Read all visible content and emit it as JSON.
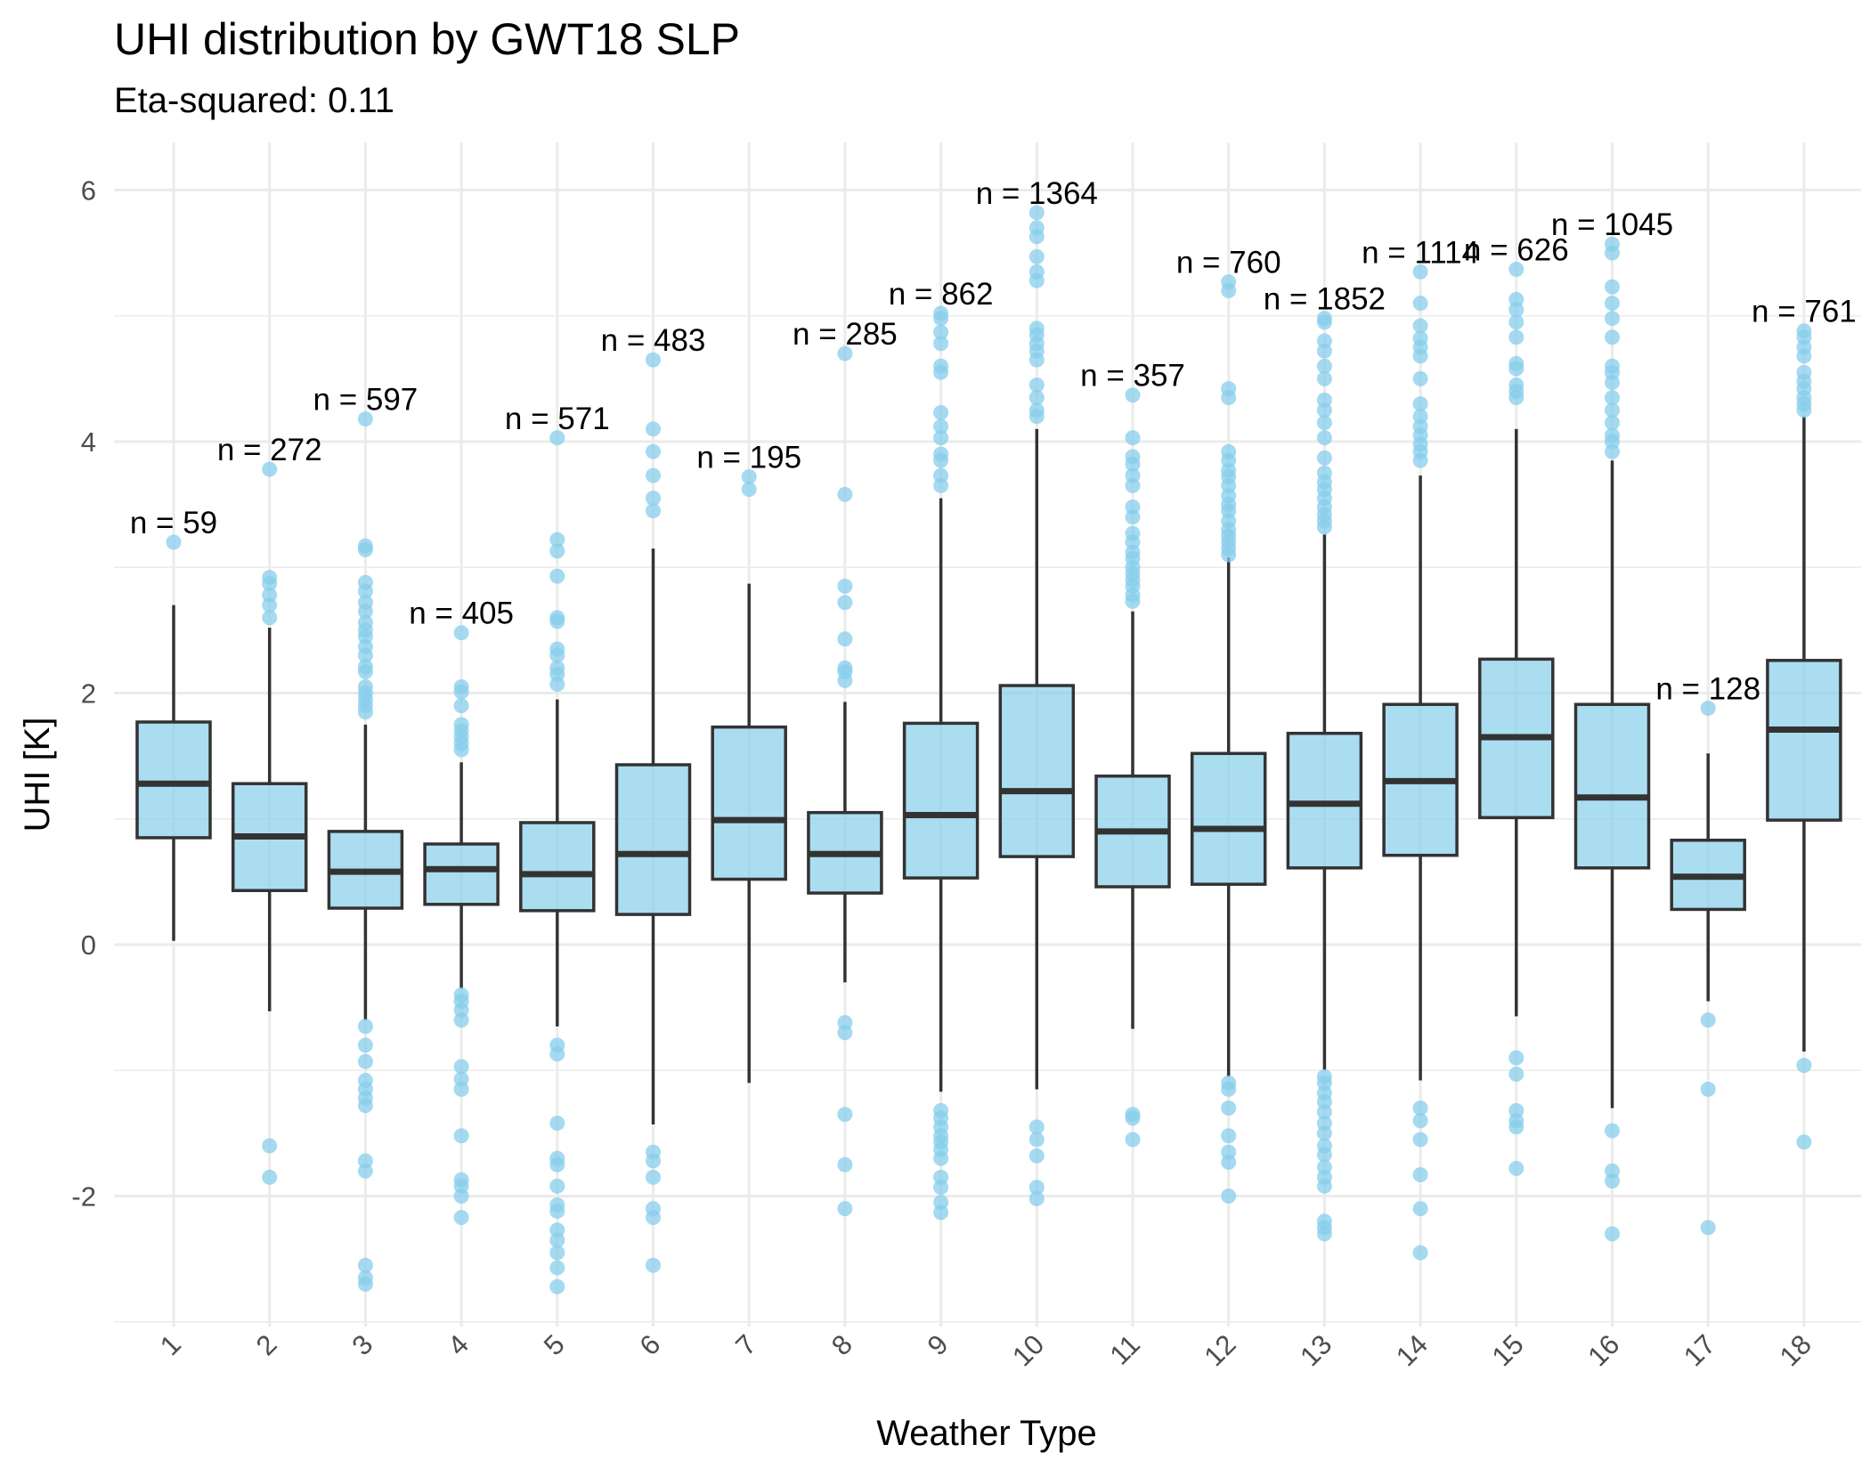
{
  "chart_data": {
    "type": "boxplot",
    "title": "UHI distribution by GWT18 SLP",
    "subtitle": "Eta-squared: 0.11",
    "xlabel": "Weather Type",
    "ylabel": "UHI [K]",
    "ylim": [
      -3,
      6.4
    ],
    "yticks": [
      -2,
      0,
      2,
      4,
      6
    ],
    "grid": true,
    "colors": {
      "fill": "#87CEEB",
      "outlier": "#87CEEB",
      "box_line": "#333333",
      "grid": "#ebebeb"
    },
    "categories": [
      "1",
      "2",
      "3",
      "4",
      "5",
      "6",
      "7",
      "8",
      "9",
      "10",
      "11",
      "12",
      "13",
      "14",
      "15",
      "16",
      "17",
      "18"
    ],
    "boxes": [
      {
        "cat": "1",
        "n_label": "n = 59",
        "n": 59,
        "whisker_low": 0.03,
        "q1": 0.85,
        "median": 1.28,
        "q3": 1.77,
        "whisker_high": 2.7,
        "outliers": [
          3.2
        ]
      },
      {
        "cat": "2",
        "n_label": "n = 272",
        "n": 272,
        "whisker_low": -0.53,
        "q1": 0.43,
        "median": 0.86,
        "q3": 1.28,
        "whisker_high": 2.52,
        "outliers": [
          3.78,
          2.92,
          2.87,
          2.78,
          2.7,
          2.6,
          -1.6,
          -1.85
        ]
      },
      {
        "cat": "3",
        "n_label": "n = 597",
        "n": 597,
        "whisker_low": -0.6,
        "q1": 0.29,
        "median": 0.58,
        "q3": 0.9,
        "whisker_high": 1.75,
        "outliers": [
          4.18,
          3.17,
          3.14,
          2.88,
          2.81,
          2.72,
          2.65,
          2.56,
          2.5,
          2.45,
          2.37,
          2.3,
          2.21,
          2.17,
          2.05,
          2.0,
          1.95,
          1.9,
          1.85,
          -0.65,
          -0.8,
          -0.93,
          -1.08,
          -1.15,
          -1.22,
          -1.28,
          -1.72,
          -1.8,
          -2.55,
          -2.65,
          -2.7
        ]
      },
      {
        "cat": "4",
        "n_label": "n = 405",
        "n": 405,
        "whisker_low": -0.35,
        "q1": 0.32,
        "median": 0.6,
        "q3": 0.8,
        "whisker_high": 1.45,
        "outliers": [
          2.48,
          2.05,
          2.01,
          1.9,
          1.75,
          1.7,
          1.65,
          1.6,
          1.55,
          -0.4,
          -0.45,
          -0.52,
          -0.6,
          -0.97,
          -1.07,
          -1.15,
          -1.52,
          -1.87,
          -1.92,
          -2.0,
          -2.17
        ]
      },
      {
        "cat": "5",
        "n_label": "n = 571",
        "n": 571,
        "whisker_low": -0.65,
        "q1": 0.27,
        "median": 0.56,
        "q3": 0.97,
        "whisker_high": 1.95,
        "outliers": [
          4.03,
          3.22,
          3.13,
          2.93,
          2.6,
          2.57,
          2.35,
          2.3,
          2.2,
          2.15,
          2.07,
          -0.8,
          -0.87,
          -1.42,
          -1.7,
          -1.75,
          -1.92,
          -2.07,
          -2.12,
          -2.27,
          -2.35,
          -2.45,
          -2.57,
          -2.72
        ]
      },
      {
        "cat": "6",
        "n_label": "n = 483",
        "n": 483,
        "whisker_low": -1.43,
        "q1": 0.24,
        "median": 0.72,
        "q3": 1.43,
        "whisker_high": 3.15,
        "outliers": [
          4.65,
          4.1,
          3.92,
          3.73,
          3.55,
          3.45,
          -1.65,
          -1.72,
          -1.85,
          -2.1,
          -2.17,
          -2.55
        ]
      },
      {
        "cat": "7",
        "n_label": "n = 195",
        "n": 195,
        "whisker_low": -1.1,
        "q1": 0.52,
        "median": 0.99,
        "q3": 1.73,
        "whisker_high": 2.87,
        "outliers": [
          3.72,
          3.62
        ]
      },
      {
        "cat": "8",
        "n_label": "n = 285",
        "n": 285,
        "whisker_low": -0.3,
        "q1": 0.41,
        "median": 0.72,
        "q3": 1.05,
        "whisker_high": 1.93,
        "outliers": [
          4.7,
          3.58,
          2.85,
          2.72,
          2.43,
          2.2,
          2.17,
          2.1,
          -0.62,
          -0.7,
          -1.35,
          -1.75,
          -2.1
        ]
      },
      {
        "cat": "9",
        "n_label": "n = 862",
        "n": 862,
        "whisker_low": -1.17,
        "q1": 0.53,
        "median": 1.03,
        "q3": 1.76,
        "whisker_high": 3.55,
        "outliers": [
          5.02,
          4.98,
          4.87,
          4.78,
          4.6,
          4.55,
          4.23,
          4.12,
          4.03,
          3.9,
          3.85,
          3.73,
          3.65,
          -1.32,
          -1.38,
          -1.45,
          -1.52,
          -1.57,
          -1.63,
          -1.7,
          -1.85,
          -1.93,
          -2.05,
          -2.13
        ]
      },
      {
        "cat": "10",
        "n_label": "n = 1364",
        "n": 1364,
        "whisker_low": -1.15,
        "q1": 0.7,
        "median": 1.22,
        "q3": 2.06,
        "whisker_high": 4.1,
        "outliers": [
          5.82,
          5.7,
          5.63,
          5.47,
          5.35,
          5.28,
          4.9,
          4.85,
          4.78,
          4.72,
          4.65,
          4.45,
          4.35,
          4.25,
          4.2,
          -1.45,
          -1.55,
          -1.68,
          -1.93,
          -2.02
        ]
      },
      {
        "cat": "11",
        "n_label": "n = 357",
        "n": 357,
        "whisker_low": -0.67,
        "q1": 0.46,
        "median": 0.9,
        "q3": 1.34,
        "whisker_high": 2.65,
        "outliers": [
          4.37,
          4.03,
          3.88,
          3.82,
          3.73,
          3.65,
          3.48,
          3.4,
          3.27,
          3.2,
          3.12,
          3.07,
          3.0,
          2.95,
          2.9,
          2.85,
          2.78,
          2.73,
          -1.35,
          -1.38,
          -1.55
        ]
      },
      {
        "cat": "12",
        "n_label": "n = 760",
        "n": 760,
        "whisker_low": -1.05,
        "q1": 0.48,
        "median": 0.92,
        "q3": 1.52,
        "whisker_high": 3.08,
        "outliers": [
          5.27,
          5.2,
          4.42,
          4.35,
          3.92,
          3.85,
          3.77,
          3.72,
          3.65,
          3.57,
          3.5,
          3.45,
          3.37,
          3.3,
          3.25,
          3.2,
          3.15,
          3.1,
          -1.1,
          -1.15,
          -1.3,
          -1.52,
          -1.65,
          -1.73,
          -2.0
        ]
      },
      {
        "cat": "13",
        "n_label": "n = 1852",
        "n": 1852,
        "whisker_low": -1.0,
        "q1": 0.61,
        "median": 1.12,
        "q3": 1.68,
        "whisker_high": 3.26,
        "outliers": [
          4.98,
          4.95,
          4.8,
          4.72,
          4.6,
          4.5,
          4.33,
          4.25,
          4.15,
          4.03,
          3.87,
          3.75,
          3.68,
          3.62,
          3.55,
          3.48,
          3.42,
          3.37,
          3.32,
          -1.05,
          -1.1,
          -1.18,
          -1.25,
          -1.33,
          -1.42,
          -1.5,
          -1.6,
          -1.67,
          -1.77,
          -1.85,
          -1.92,
          -2.2,
          -2.25,
          -2.3
        ]
      },
      {
        "cat": "14",
        "n_label": "n = 1114",
        "n": 1114,
        "whisker_low": -1.08,
        "q1": 0.71,
        "median": 1.3,
        "q3": 1.91,
        "whisker_high": 3.73,
        "outliers": [
          5.35,
          5.1,
          4.92,
          4.82,
          4.75,
          4.68,
          4.5,
          4.3,
          4.2,
          4.12,
          4.05,
          3.98,
          3.92,
          3.85,
          -1.3,
          -1.4,
          -1.55,
          -1.83,
          -2.1,
          -2.45
        ]
      },
      {
        "cat": "15",
        "n_label": "n = 626",
        "n": 626,
        "whisker_low": -0.57,
        "q1": 1.01,
        "median": 1.65,
        "q3": 2.27,
        "whisker_high": 4.1,
        "outliers": [
          5.37,
          5.13,
          5.05,
          4.95,
          4.83,
          4.62,
          4.58,
          4.45,
          4.4,
          4.35,
          -0.9,
          -1.03,
          -1.32,
          -1.4,
          -1.45,
          -1.78
        ]
      },
      {
        "cat": "16",
        "n_label": "n = 1045",
        "n": 1045,
        "whisker_low": -1.3,
        "q1": 0.61,
        "median": 1.17,
        "q3": 1.91,
        "whisker_high": 3.85,
        "outliers": [
          5.57,
          5.5,
          5.23,
          5.1,
          4.98,
          4.83,
          4.6,
          4.55,
          4.47,
          4.35,
          4.25,
          4.15,
          4.05,
          4.0,
          3.92,
          -1.48,
          -1.8,
          -1.88,
          -2.3
        ]
      },
      {
        "cat": "17",
        "n_label": "n = 128",
        "n": 128,
        "whisker_low": -0.45,
        "q1": 0.28,
        "median": 0.54,
        "q3": 0.83,
        "whisker_high": 1.52,
        "outliers": [
          1.88,
          -0.6,
          -1.15,
          -2.25
        ]
      },
      {
        "cat": "18",
        "n_label": "n = 761",
        "n": 761,
        "whisker_low": -0.85,
        "q1": 0.99,
        "median": 1.71,
        "q3": 2.26,
        "whisker_high": 4.2,
        "outliers": [
          4.88,
          4.83,
          4.75,
          4.68,
          4.55,
          4.48,
          4.42,
          4.35,
          4.3,
          4.25,
          -0.96,
          -1.57
        ]
      }
    ]
  }
}
